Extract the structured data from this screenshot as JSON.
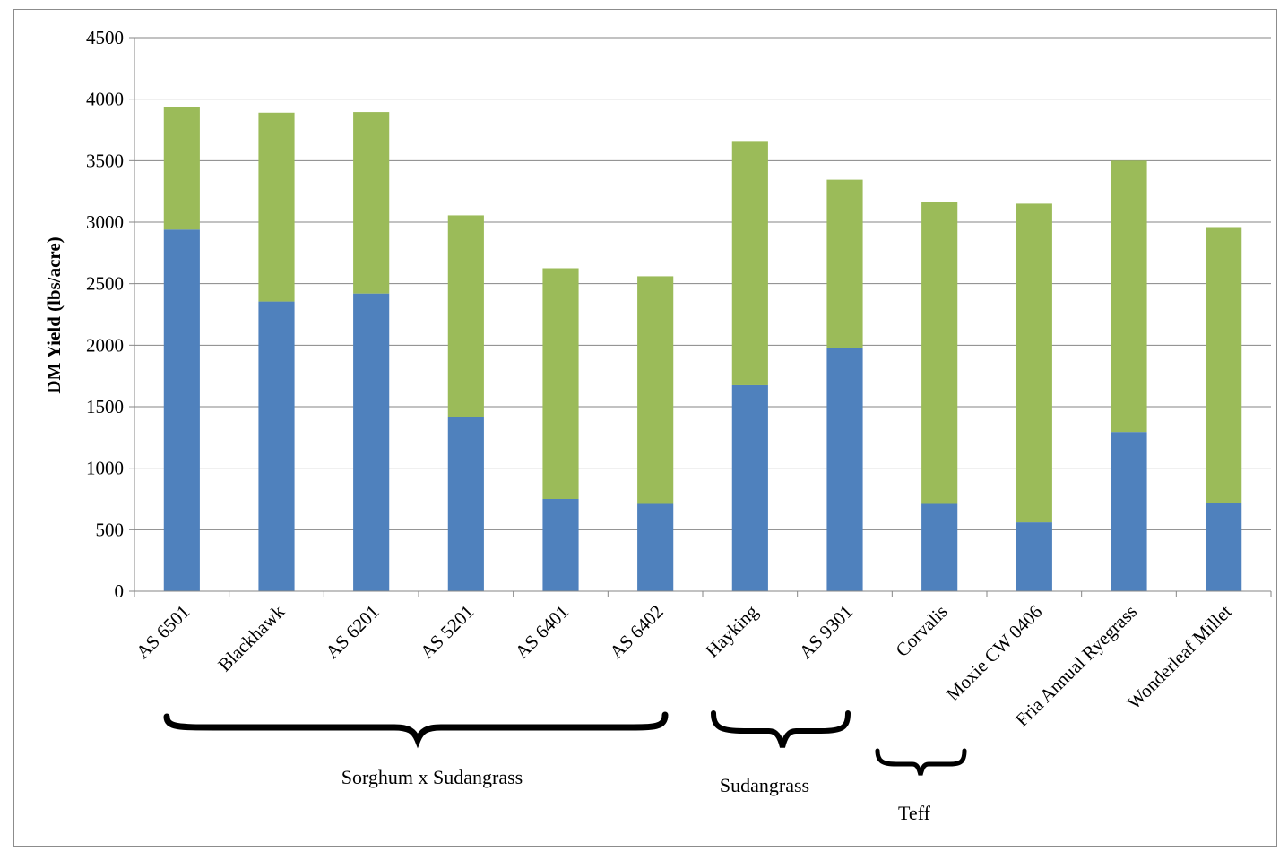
{
  "chart_data": {
    "type": "bar",
    "stacked": true,
    "title": "",
    "xlabel": "",
    "ylabel": "DM Yield (lbs/acre)",
    "ylim": [
      0,
      4500
    ],
    "yticks": [
      0,
      500,
      1000,
      1500,
      2000,
      2500,
      3000,
      3500,
      4000,
      4500
    ],
    "grid": true,
    "legend": "none",
    "categories": [
      "AS 6501",
      "Blackhawk",
      "AS 6201",
      "AS 5201",
      "AS 6401",
      "AS 6402",
      "Hayking",
      "AS 9301",
      "Corvalis",
      "Moxie CW 0406",
      "Fria Annual Ryegrass",
      "Wonderleaf Millet"
    ],
    "series": [
      {
        "color": "#4f81bd",
        "values": [
          2940,
          2355,
          2420,
          1415,
          750,
          710,
          1675,
          1980,
          710,
          560,
          1295,
          720
        ]
      },
      {
        "color": "#9bbb59",
        "values": [
          995,
          1535,
          1475,
          1640,
          1875,
          1850,
          1985,
          1365,
          2455,
          2590,
          2205,
          2240
        ]
      }
    ],
    "groups": [
      {
        "label": "Sorghum x Sudangrass",
        "from": 0,
        "to": 5
      },
      {
        "label": "Sudangrass",
        "from": 6,
        "to": 7
      },
      {
        "label": "Teff",
        "from": 8,
        "to": 8
      }
    ]
  }
}
